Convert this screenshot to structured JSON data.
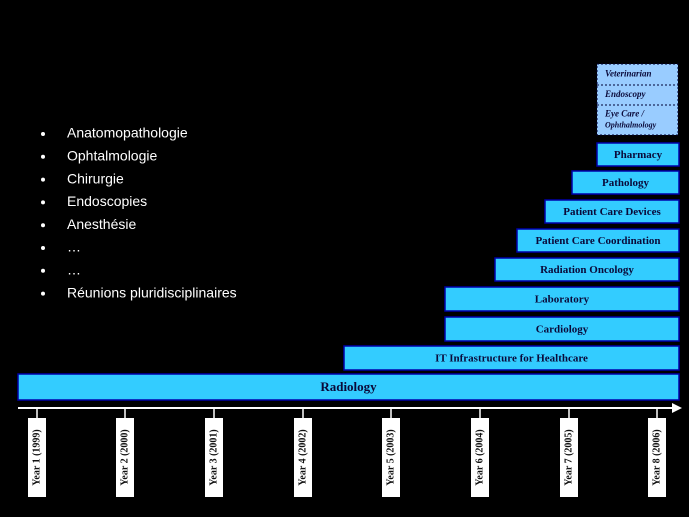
{
  "bullets": [
    "Anatomopathologie",
    "Ophtalmologie",
    "Chirurgie",
    "Endoscopies",
    "Anesthésie",
    "…",
    "…",
    "Réunions pluridisciplinaires"
  ],
  "domains": [
    {
      "label": "Radiology"
    },
    {
      "label": "IT Infrastructure for Healthcare"
    },
    {
      "label": "Cardiology"
    },
    {
      "label": "Laboratory"
    },
    {
      "label": "Radiation Oncology"
    },
    {
      "label": "Patient Care Coordination"
    },
    {
      "label": "Patient Care Devices"
    },
    {
      "label": "Pathology"
    },
    {
      "label": "Pharmacy"
    }
  ],
  "future_domains": [
    {
      "lines": [
        "Eye Care /",
        "Ophthalmology"
      ]
    },
    {
      "lines": [
        "Endoscopy"
      ]
    },
    {
      "lines": [
        "Veterinarian"
      ]
    }
  ],
  "years": [
    "Year 1 (1999)",
    "Year 2 (2000)",
    "Year 3 (2001)",
    "Year 4 (2002)",
    "Year 5 (2003)",
    "Year 6 (2004)",
    "Year 7 (2005)",
    "Year 8 (2006)"
  ]
}
